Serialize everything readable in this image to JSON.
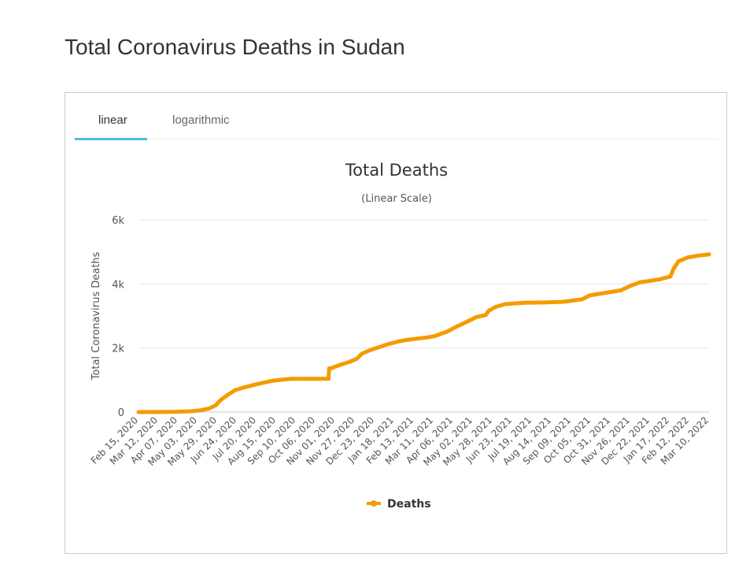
{
  "page": {
    "title": "Total Coronavirus Deaths in Sudan"
  },
  "tabs": [
    {
      "label": "linear",
      "active": true
    },
    {
      "label": "logarithmic",
      "active": false
    }
  ],
  "colors": {
    "series": "#f59b00",
    "tab_underline": "#4fbde3",
    "gridline": "#e6e6e6"
  },
  "chart_data": {
    "type": "line",
    "title": "Total Deaths",
    "subtitle": "(Linear Scale)",
    "xlabel": "",
    "ylabel": "Total Coronavirus Deaths",
    "ylim": [
      0,
      6000
    ],
    "yticks": [
      {
        "value": 0,
        "label": "0"
      },
      {
        "value": 2000,
        "label": "2k"
      },
      {
        "value": 4000,
        "label": "4k"
      },
      {
        "value": 6000,
        "label": "6k"
      }
    ],
    "categories": [
      "Feb 15, 2020",
      "Mar 12, 2020",
      "Apr 07, 2020",
      "May 03, 2020",
      "May 29, 2020",
      "Jun 24, 2020",
      "Jul 20, 2020",
      "Aug 15, 2020",
      "Sep 10, 2020",
      "Oct 06, 2020",
      "Nov 01, 2020",
      "Nov 27, 2020",
      "Dec 23, 2020",
      "Jan 18, 2021",
      "Feb 13, 2021",
      "Mar 11, 2021",
      "Apr 06, 2021",
      "May 02, 2021",
      "May 28, 2021",
      "Jun 23, 2021",
      "Jul 19, 2021",
      "Aug 14, 2021",
      "Sep 09, 2021",
      "Oct 05, 2021",
      "Oct 31, 2021",
      "Nov 26, 2021",
      "Dec 22, 2021",
      "Jan 17, 2022",
      "Feb 12, 2022",
      "Mar 10, 2022"
    ],
    "grid": true,
    "legend": "bottom-center",
    "series": [
      {
        "name": "Deaths",
        "points": [
          [
            "Feb 15, 2020",
            0
          ],
          [
            "Mar 12, 2020",
            2
          ],
          [
            "Apr 07, 2020",
            10
          ],
          [
            "Apr 25, 2020",
            25
          ],
          [
            "May 10, 2020",
            60
          ],
          [
            "May 20, 2020",
            110
          ],
          [
            "May 29, 2020",
            210
          ],
          [
            "Jun 05, 2020",
            380
          ],
          [
            "Jun 14, 2020",
            530
          ],
          [
            "Jun 24, 2020",
            680
          ],
          [
            "Jul 05, 2020",
            760
          ],
          [
            "Jul 20, 2020",
            850
          ],
          [
            "Aug 02, 2020",
            920
          ],
          [
            "Aug 15, 2020",
            980
          ],
          [
            "Aug 30, 2020",
            1020
          ],
          [
            "Sep 10, 2020",
            1040
          ],
          [
            "Oct 06, 2020",
            1040
          ],
          [
            "Oct 28, 2020",
            1040
          ],
          [
            "Oct 29, 2020",
            1360
          ],
          [
            "Nov 01, 2020",
            1370
          ],
          [
            "Nov 10, 2020",
            1450
          ],
          [
            "Nov 27, 2020",
            1580
          ],
          [
            "Dec 05, 2020",
            1660
          ],
          [
            "Dec 12, 2020",
            1820
          ],
          [
            "Dec 23, 2020",
            1930
          ],
          [
            "Jan 05, 2021",
            2030
          ],
          [
            "Jan 18, 2021",
            2130
          ],
          [
            "Jan 30, 2021",
            2200
          ],
          [
            "Feb 13, 2021",
            2260
          ],
          [
            "Mar 11, 2021",
            2330
          ],
          [
            "Mar 20, 2021",
            2370
          ],
          [
            "Apr 06, 2021",
            2510
          ],
          [
            "Apr 20, 2021",
            2680
          ],
          [
            "May 02, 2021",
            2810
          ],
          [
            "May 15, 2021",
            2960
          ],
          [
            "May 28, 2021",
            3030
          ],
          [
            "Jun 01, 2021",
            3160
          ],
          [
            "Jun 10, 2021",
            3280
          ],
          [
            "Jun 23, 2021",
            3370
          ],
          [
            "Jul 19, 2021",
            3410
          ],
          [
            "Aug 14, 2021",
            3420
          ],
          [
            "Sep 09, 2021",
            3440
          ],
          [
            "Sep 25, 2021",
            3490
          ],
          [
            "Oct 05, 2021",
            3520
          ],
          [
            "Oct 15, 2021",
            3640
          ],
          [
            "Oct 31, 2021",
            3700
          ],
          [
            "Nov 26, 2021",
            3800
          ],
          [
            "Dec 10, 2021",
            3950
          ],
          [
            "Dec 22, 2021",
            4050
          ],
          [
            "Jan 05, 2022",
            4100
          ],
          [
            "Jan 17, 2022",
            4140
          ],
          [
            "Feb 01, 2022",
            4230
          ],
          [
            "Feb 05, 2022",
            4460
          ],
          [
            "Feb 12, 2022",
            4710
          ],
          [
            "Feb 25, 2022",
            4830
          ],
          [
            "Mar 10, 2022",
            4880
          ],
          [
            "Mar 25, 2022",
            4920
          ]
        ]
      }
    ]
  }
}
